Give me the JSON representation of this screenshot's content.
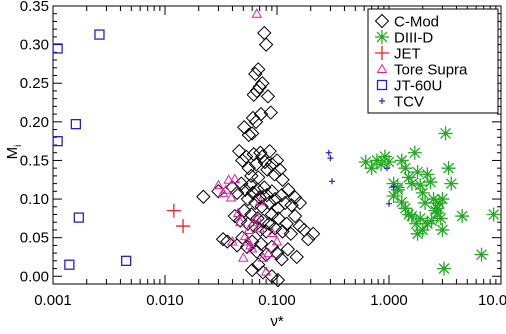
{
  "chart_data": {
    "type": "scatter",
    "title": "",
    "xlabel": "ν*",
    "ylabel": "M_i",
    "x_scale": "log",
    "xlim": [
      0.001,
      10
    ],
    "ylim": [
      -0.01,
      0.35
    ],
    "x_ticks": [
      {
        "value": 0.001,
        "label": "0.001"
      },
      {
        "value": 0.01,
        "label": "0.010"
      },
      {
        "value": 0.1,
        "label": "0.100"
      },
      {
        "value": 1,
        "label": "1.000"
      },
      {
        "value": 10,
        "label": "10.000"
      }
    ],
    "y_ticks": [
      {
        "value": 0.0,
        "label": "0.00"
      },
      {
        "value": 0.05,
        "label": "0.05"
      },
      {
        "value": 0.1,
        "label": "0.10"
      },
      {
        "value": 0.15,
        "label": "0.15"
      },
      {
        "value": 0.2,
        "label": "0.20"
      },
      {
        "value": 0.25,
        "label": "0.25"
      },
      {
        "value": 0.3,
        "label": "0.30"
      },
      {
        "value": 0.35,
        "label": "0.35"
      }
    ],
    "legend_position": "top-right",
    "series": [
      {
        "name": "C-Mod",
        "marker": "diamond",
        "color": "#000000",
        "points": [
          [
            0.051,
            0.193
          ],
          [
            0.056,
            0.183
          ],
          [
            0.061,
            0.205
          ],
          [
            0.062,
            0.235
          ],
          [
            0.064,
            0.262
          ],
          [
            0.066,
            0.24
          ],
          [
            0.068,
            0.268
          ],
          [
            0.07,
            0.245
          ],
          [
            0.074,
            0.25
          ],
          [
            0.077,
            0.315
          ],
          [
            0.08,
            0.3
          ],
          [
            0.083,
            0.233
          ],
          [
            0.088,
            0.212
          ],
          [
            0.072,
            0.21
          ],
          [
            0.065,
            0.2
          ],
          [
            0.06,
            0.185
          ],
          [
            0.046,
            0.162
          ],
          [
            0.049,
            0.15
          ],
          [
            0.053,
            0.155
          ],
          [
            0.056,
            0.14
          ],
          [
            0.059,
            0.13
          ],
          [
            0.062,
            0.158
          ],
          [
            0.065,
            0.145
          ],
          [
            0.068,
            0.128
          ],
          [
            0.071,
            0.16
          ],
          [
            0.074,
            0.155
          ],
          [
            0.078,
            0.148
          ],
          [
            0.082,
            0.138
          ],
          [
            0.086,
            0.162
          ],
          [
            0.09,
            0.145
          ],
          [
            0.095,
            0.132
          ],
          [
            0.1,
            0.15
          ],
          [
            0.106,
            0.138
          ],
          [
            0.112,
            0.125
          ],
          [
            0.04,
            0.115
          ],
          [
            0.044,
            0.108
          ],
          [
            0.048,
            0.12
          ],
          [
            0.052,
            0.112
          ],
          [
            0.055,
            0.1
          ],
          [
            0.058,
            0.118
          ],
          [
            0.061,
            0.108
          ],
          [
            0.064,
            0.095
          ],
          [
            0.067,
            0.112
          ],
          [
            0.07,
            0.102
          ],
          [
            0.073,
            0.09
          ],
          [
            0.077,
            0.115
          ],
          [
            0.081,
            0.105
          ],
          [
            0.085,
            0.095
          ],
          [
            0.09,
            0.11
          ],
          [
            0.096,
            0.1
          ],
          [
            0.102,
            0.088
          ],
          [
            0.11,
            0.105
          ],
          [
            0.118,
            0.095
          ],
          [
            0.126,
            0.112
          ],
          [
            0.135,
            0.092
          ],
          [
            0.145,
            0.102
          ],
          [
            0.16,
            0.095
          ],
          [
            0.03,
            0.11
          ],
          [
            0.022,
            0.103
          ],
          [
            0.042,
            0.078
          ],
          [
            0.047,
            0.072
          ],
          [
            0.051,
            0.085
          ],
          [
            0.055,
            0.068
          ],
          [
            0.059,
            0.08
          ],
          [
            0.063,
            0.065
          ],
          [
            0.067,
            0.075
          ],
          [
            0.071,
            0.06
          ],
          [
            0.075,
            0.072
          ],
          [
            0.08,
            0.058
          ],
          [
            0.085,
            0.068
          ],
          [
            0.09,
            0.08
          ],
          [
            0.096,
            0.062
          ],
          [
            0.103,
            0.075
          ],
          [
            0.112,
            0.058
          ],
          [
            0.122,
            0.068
          ],
          [
            0.133,
            0.055
          ],
          [
            0.145,
            0.078
          ],
          [
            0.16,
            0.065
          ],
          [
            0.175,
            0.06
          ],
          [
            0.19,
            0.048
          ],
          [
            0.21,
            0.055
          ],
          [
            0.033,
            0.048
          ],
          [
            0.036,
            0.045
          ],
          [
            0.044,
            0.04
          ],
          [
            0.049,
            0.05
          ],
          [
            0.054,
            0.038
          ],
          [
            0.06,
            0.045
          ],
          [
            0.066,
            0.032
          ],
          [
            0.072,
            0.042
          ],
          [
            0.08,
            0.028
          ],
          [
            0.09,
            0.038
          ],
          [
            0.1,
            0.03
          ],
          [
            0.11,
            0.022
          ],
          [
            0.125,
            0.035
          ],
          [
            0.15,
            0.025
          ],
          [
            0.068,
            0.015
          ],
          [
            0.06,
            0.008
          ],
          [
            0.075,
            0.005
          ],
          [
            0.09,
            0.0
          ],
          [
            0.102,
            -0.005
          ]
        ]
      },
      {
        "name": "DIII-D",
        "marker": "asterisk",
        "color": "#22aa22",
        "points": [
          [
            0.62,
            0.148
          ],
          [
            0.7,
            0.14
          ],
          [
            0.78,
            0.15
          ],
          [
            0.85,
            0.145
          ],
          [
            0.92,
            0.155
          ],
          [
            1.0,
            0.148
          ],
          [
            1.1,
            0.12
          ],
          [
            1.2,
            0.115
          ],
          [
            1.3,
            0.15
          ],
          [
            1.4,
            0.14
          ],
          [
            1.5,
            0.128
          ],
          [
            1.6,
            0.12
          ],
          [
            1.7,
            0.16
          ],
          [
            1.8,
            0.135
          ],
          [
            1.9,
            0.118
          ],
          [
            2.0,
            0.108
          ],
          [
            2.1,
            0.095
          ],
          [
            2.2,
            0.132
          ],
          [
            2.35,
            0.122
          ],
          [
            2.5,
            0.1
          ],
          [
            2.7,
            0.088
          ],
          [
            2.9,
            0.075
          ],
          [
            3.0,
            0.06
          ],
          [
            3.2,
            0.185
          ],
          [
            3.4,
            0.14
          ],
          [
            3.6,
            0.12
          ],
          [
            3.0,
            0.1
          ],
          [
            2.8,
            0.095
          ],
          [
            2.6,
            0.085
          ],
          [
            2.4,
            0.072
          ],
          [
            2.2,
            0.068
          ],
          [
            2.0,
            0.06
          ],
          [
            1.8,
            0.055
          ],
          [
            1.6,
            0.078
          ],
          [
            1.5,
            0.08
          ],
          [
            1.4,
            0.088
          ],
          [
            1.3,
            0.096
          ],
          [
            1.2,
            0.112
          ],
          [
            1.1,
            0.104
          ],
          [
            3.1,
            0.01
          ],
          [
            4.5,
            0.078
          ],
          [
            6.7,
            0.028
          ],
          [
            8.6,
            0.08
          ],
          [
            2.7,
            0.082
          ],
          [
            1.9,
            0.075
          ],
          [
            1.75,
            0.068
          ]
        ]
      },
      {
        "name": "JET",
        "marker": "plus",
        "color": "#ee2222",
        "points": [
          [
            0.012,
            0.085
          ],
          [
            0.0145,
            0.065
          ]
        ]
      },
      {
        "name": "Tore Supra",
        "marker": "triangle",
        "color": "#dd22aa",
        "points": [
          [
            0.066,
            0.34
          ],
          [
            0.03,
            0.118
          ],
          [
            0.033,
            0.108
          ],
          [
            0.035,
            0.112
          ],
          [
            0.039,
            0.102
          ],
          [
            0.042,
            0.126
          ],
          [
            0.045,
            0.082
          ],
          [
            0.047,
            0.07
          ],
          [
            0.052,
            0.052
          ],
          [
            0.054,
            0.045
          ],
          [
            0.04,
            0.045
          ],
          [
            0.058,
            0.04
          ],
          [
            0.06,
            0.036
          ],
          [
            0.062,
            0.07
          ],
          [
            0.066,
            0.076
          ],
          [
            0.07,
            0.062
          ],
          [
            0.075,
            0.024
          ],
          [
            0.08,
            0.006
          ],
          [
            0.084,
            0.03
          ],
          [
            0.091,
            0.056
          ],
          [
            0.1,
            0.045
          ],
          [
            0.05,
            0.024
          ],
          [
            0.056,
            0.06
          ],
          [
            0.037,
            0.125
          ],
          [
            0.071,
            0.097
          ]
        ]
      },
      {
        "name": "JT-60U",
        "marker": "square",
        "color": "#2222cc",
        "points": [
          [
            0.0011,
            0.295
          ],
          [
            0.0011,
            0.175
          ],
          [
            0.0014,
            0.015
          ],
          [
            0.0016,
            0.197
          ],
          [
            0.0017,
            0.076
          ],
          [
            0.0026,
            0.313
          ],
          [
            0.0045,
            0.02
          ]
        ]
      },
      {
        "name": "TCV",
        "marker": "cross",
        "color": "#2222cc",
        "points": [
          [
            0.29,
            0.16
          ],
          [
            0.3,
            0.153
          ],
          [
            0.31,
            0.123
          ],
          [
            0.96,
            0.14
          ],
          [
            1.0,
            0.094
          ],
          [
            1.1,
            0.116
          ]
        ]
      }
    ]
  }
}
